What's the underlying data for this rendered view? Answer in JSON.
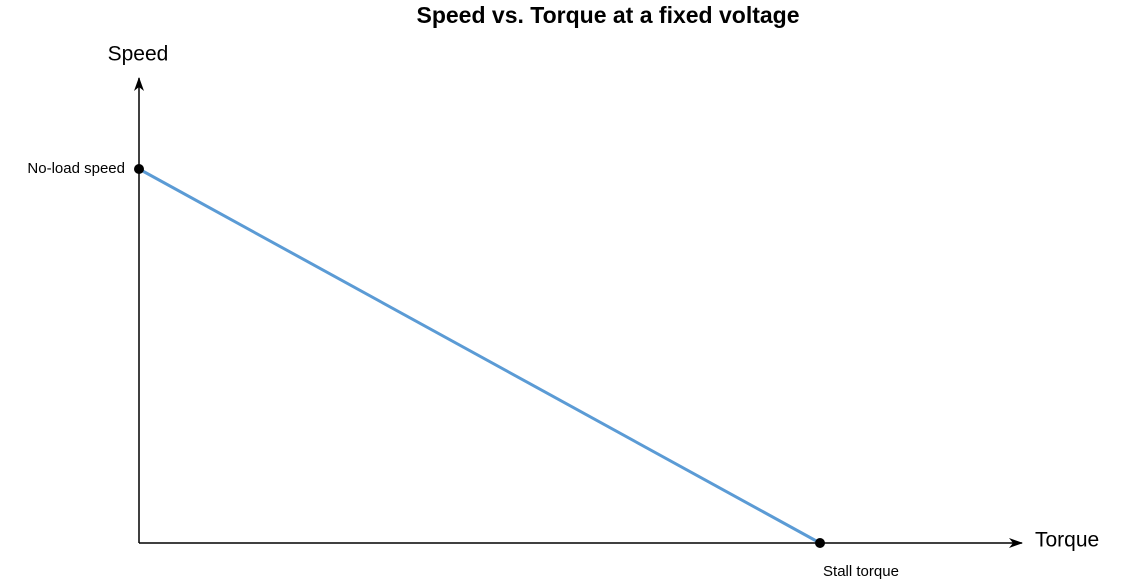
{
  "title": "Speed vs. Torque at a fixed voltage",
  "axes": {
    "y_label": "Speed",
    "x_label": "Torque"
  },
  "points": [
    {
      "label": "No-load speed"
    },
    {
      "label": "Stall torque"
    }
  ]
}
